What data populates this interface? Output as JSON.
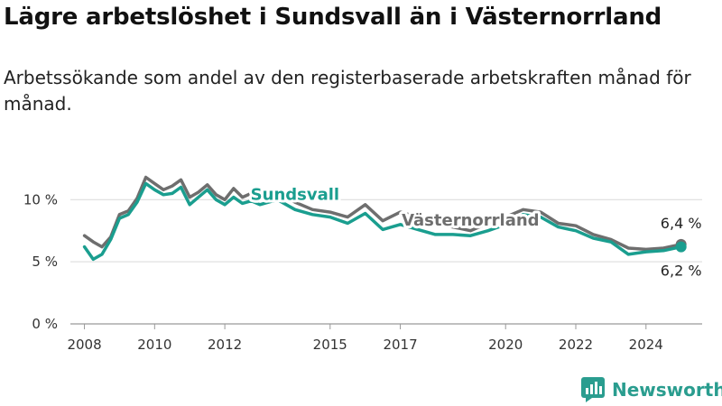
{
  "header": {
    "title": "Lägre arbetslöshet i Sundsvall än i Västernorrland",
    "subtitle": "Arbetssökande som andel av den registerbaserade arbetskraften månad för månad."
  },
  "brand": {
    "name": "Newsworthy",
    "color": "#2a9d8f"
  },
  "chart_data": {
    "type": "line",
    "title": "Lägre arbetslöshet i Sundsvall än i Västernorrland",
    "subtitle": "Arbetssökande som andel av den registerbaserade arbetskraften månad för månad.",
    "xlabel": "",
    "ylabel": "",
    "ylim": [
      0,
      13
    ],
    "xlim": [
      2007.6,
      2025.6
    ],
    "y_ticks": [
      {
        "value": 0,
        "label": "0 %"
      },
      {
        "value": 5,
        "label": "5 %"
      },
      {
        "value": 10,
        "label": "10 %"
      }
    ],
    "x_ticks": [
      {
        "value": 2008,
        "label": "2008"
      },
      {
        "value": 2010,
        "label": "2010"
      },
      {
        "value": 2012,
        "label": "2012"
      },
      {
        "value": 2015,
        "label": "2015"
      },
      {
        "value": 2017,
        "label": "2017"
      },
      {
        "value": 2020,
        "label": "2020"
      },
      {
        "value": 2022,
        "label": "2022"
      },
      {
        "value": 2024,
        "label": "2024"
      }
    ],
    "grid": true,
    "legend": "inline labels",
    "series": [
      {
        "name": "Västernorrland",
        "color": "#6e6e6e",
        "end_label": "6,4 %",
        "x": [
          2008.0,
          2008.25,
          2008.5,
          2008.75,
          2009.0,
          2009.25,
          2009.5,
          2009.75,
          2010.0,
          2010.25,
          2010.5,
          2010.75,
          2011.0,
          2011.25,
          2011.5,
          2011.75,
          2012.0,
          2012.25,
          2012.5,
          2012.75,
          2013.0,
          2013.5,
          2014.0,
          2014.5,
          2015.0,
          2015.5,
          2016.0,
          2016.5,
          2017.0,
          2017.5,
          2018.0,
          2018.5,
          2019.0,
          2019.5,
          2020.0,
          2020.5,
          2021.0,
          2021.5,
          2022.0,
          2022.5,
          2023.0,
          2023.5,
          2024.0,
          2024.5,
          2025.0
        ],
        "values": [
          7.1,
          6.6,
          6.2,
          7.0,
          8.8,
          9.1,
          10.1,
          11.8,
          11.3,
          10.8,
          11.1,
          11.6,
          10.2,
          10.6,
          11.2,
          10.4,
          10.0,
          10.9,
          10.2,
          10.5,
          10.2,
          10.5,
          9.8,
          9.2,
          9.0,
          8.6,
          9.6,
          8.3,
          9.0,
          8.6,
          8.1,
          7.8,
          7.5,
          8.1,
          8.6,
          9.2,
          9.0,
          8.1,
          7.9,
          7.2,
          6.8,
          6.1,
          6.0,
          6.1,
          6.4
        ]
      },
      {
        "name": "Sundsvall",
        "color": "#1a9e8f",
        "end_label": "6,2 %",
        "x": [
          2008.0,
          2008.25,
          2008.5,
          2008.75,
          2009.0,
          2009.25,
          2009.5,
          2009.75,
          2010.0,
          2010.25,
          2010.5,
          2010.75,
          2011.0,
          2011.25,
          2011.5,
          2011.75,
          2012.0,
          2012.25,
          2012.5,
          2012.75,
          2013.0,
          2013.5,
          2014.0,
          2014.5,
          2015.0,
          2015.5,
          2016.0,
          2016.5,
          2017.0,
          2017.5,
          2018.0,
          2018.5,
          2019.0,
          2019.5,
          2020.0,
          2020.5,
          2021.0,
          2021.5,
          2022.0,
          2022.5,
          2023.0,
          2023.5,
          2024.0,
          2024.5,
          2025.0
        ],
        "values": [
          6.2,
          5.2,
          5.6,
          6.8,
          8.5,
          8.8,
          9.8,
          11.3,
          10.8,
          10.4,
          10.5,
          11.0,
          9.6,
          10.2,
          10.8,
          10.0,
          9.6,
          10.2,
          9.7,
          9.9,
          9.6,
          10.0,
          9.2,
          8.8,
          8.6,
          8.1,
          8.9,
          7.6,
          8.0,
          7.6,
          7.2,
          7.2,
          7.1,
          7.5,
          8.0,
          8.8,
          8.6,
          7.8,
          7.5,
          6.9,
          6.6,
          5.6,
          5.8,
          5.9,
          6.2
        ]
      }
    ],
    "annotations": [
      {
        "text": "Sundsvall",
        "x": 2014.0,
        "y": 10.0,
        "series": "Sundsvall"
      },
      {
        "text": "Västernorrland",
        "x": 2019.0,
        "y": 7.9,
        "series": "Västernorrland"
      }
    ]
  }
}
